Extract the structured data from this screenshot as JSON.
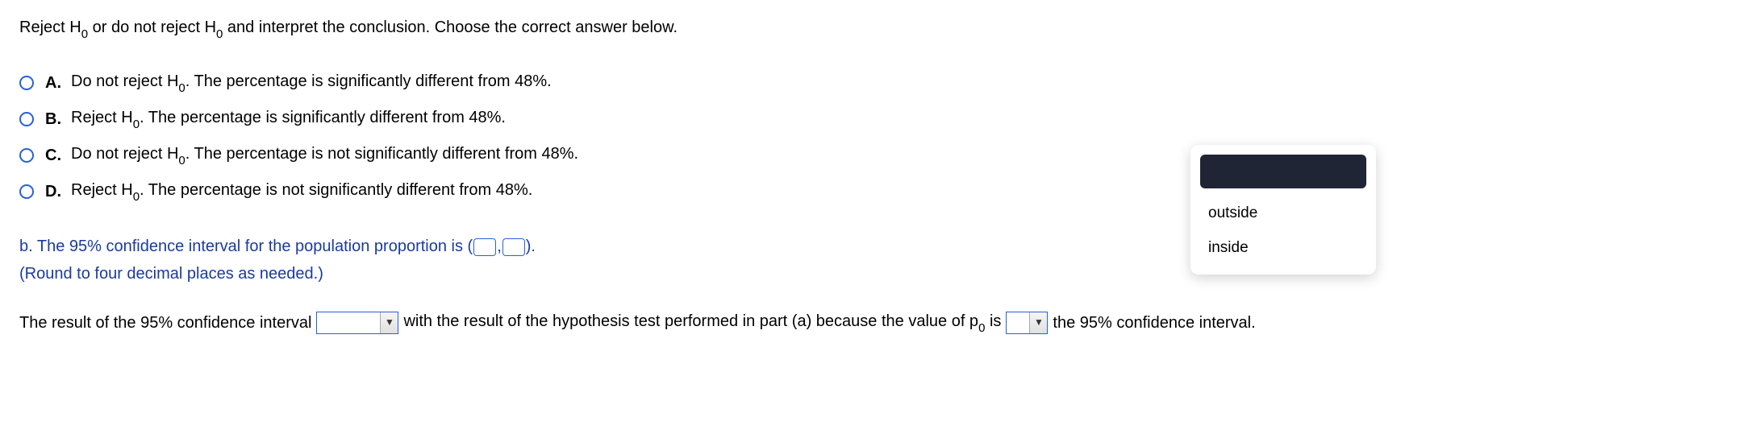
{
  "prompt": {
    "prefix": "Reject H",
    "sub": "0",
    "mid": " or do not reject H",
    "sub2": "0",
    "suffix": " and interpret the conclusion. Choose the correct answer below."
  },
  "options": [
    {
      "letter": "A.",
      "prefix": "Do not reject H",
      "sub": "0",
      "suffix": ". The percentage is significantly different from 48%."
    },
    {
      "letter": "B.",
      "prefix": "Reject H",
      "sub": "0",
      "suffix": ". The percentage is significantly different from 48%."
    },
    {
      "letter": "C.",
      "prefix": "Do not reject H",
      "sub": "0",
      "suffix": ". The percentage is not significantly different from 48%."
    },
    {
      "letter": "D.",
      "prefix": "Reject H",
      "sub": "0",
      "suffix": ". The percentage is not significantly different from 48%."
    }
  ],
  "partB": {
    "line1_prefix": "b. The 95% confidence interval for the population proportion is (",
    "line1_comma": ",",
    "line1_suffix": ").",
    "line2": "(Round to four decimal places as needed.)"
  },
  "finalLine": {
    "seg1": "The result of the 95% confidence interval",
    "seg2": "with the result of the hypothesis test performed in part (a) because the value of p",
    "sub": "0",
    "seg3": " is",
    "seg4": "the 95% confidence interval."
  },
  "popup": {
    "item1": "outside",
    "item2": "inside"
  },
  "colors": {
    "border_blue": "#2b5fd9",
    "text_blue": "#1a3b9e",
    "popup_dark": "#1f2535"
  }
}
